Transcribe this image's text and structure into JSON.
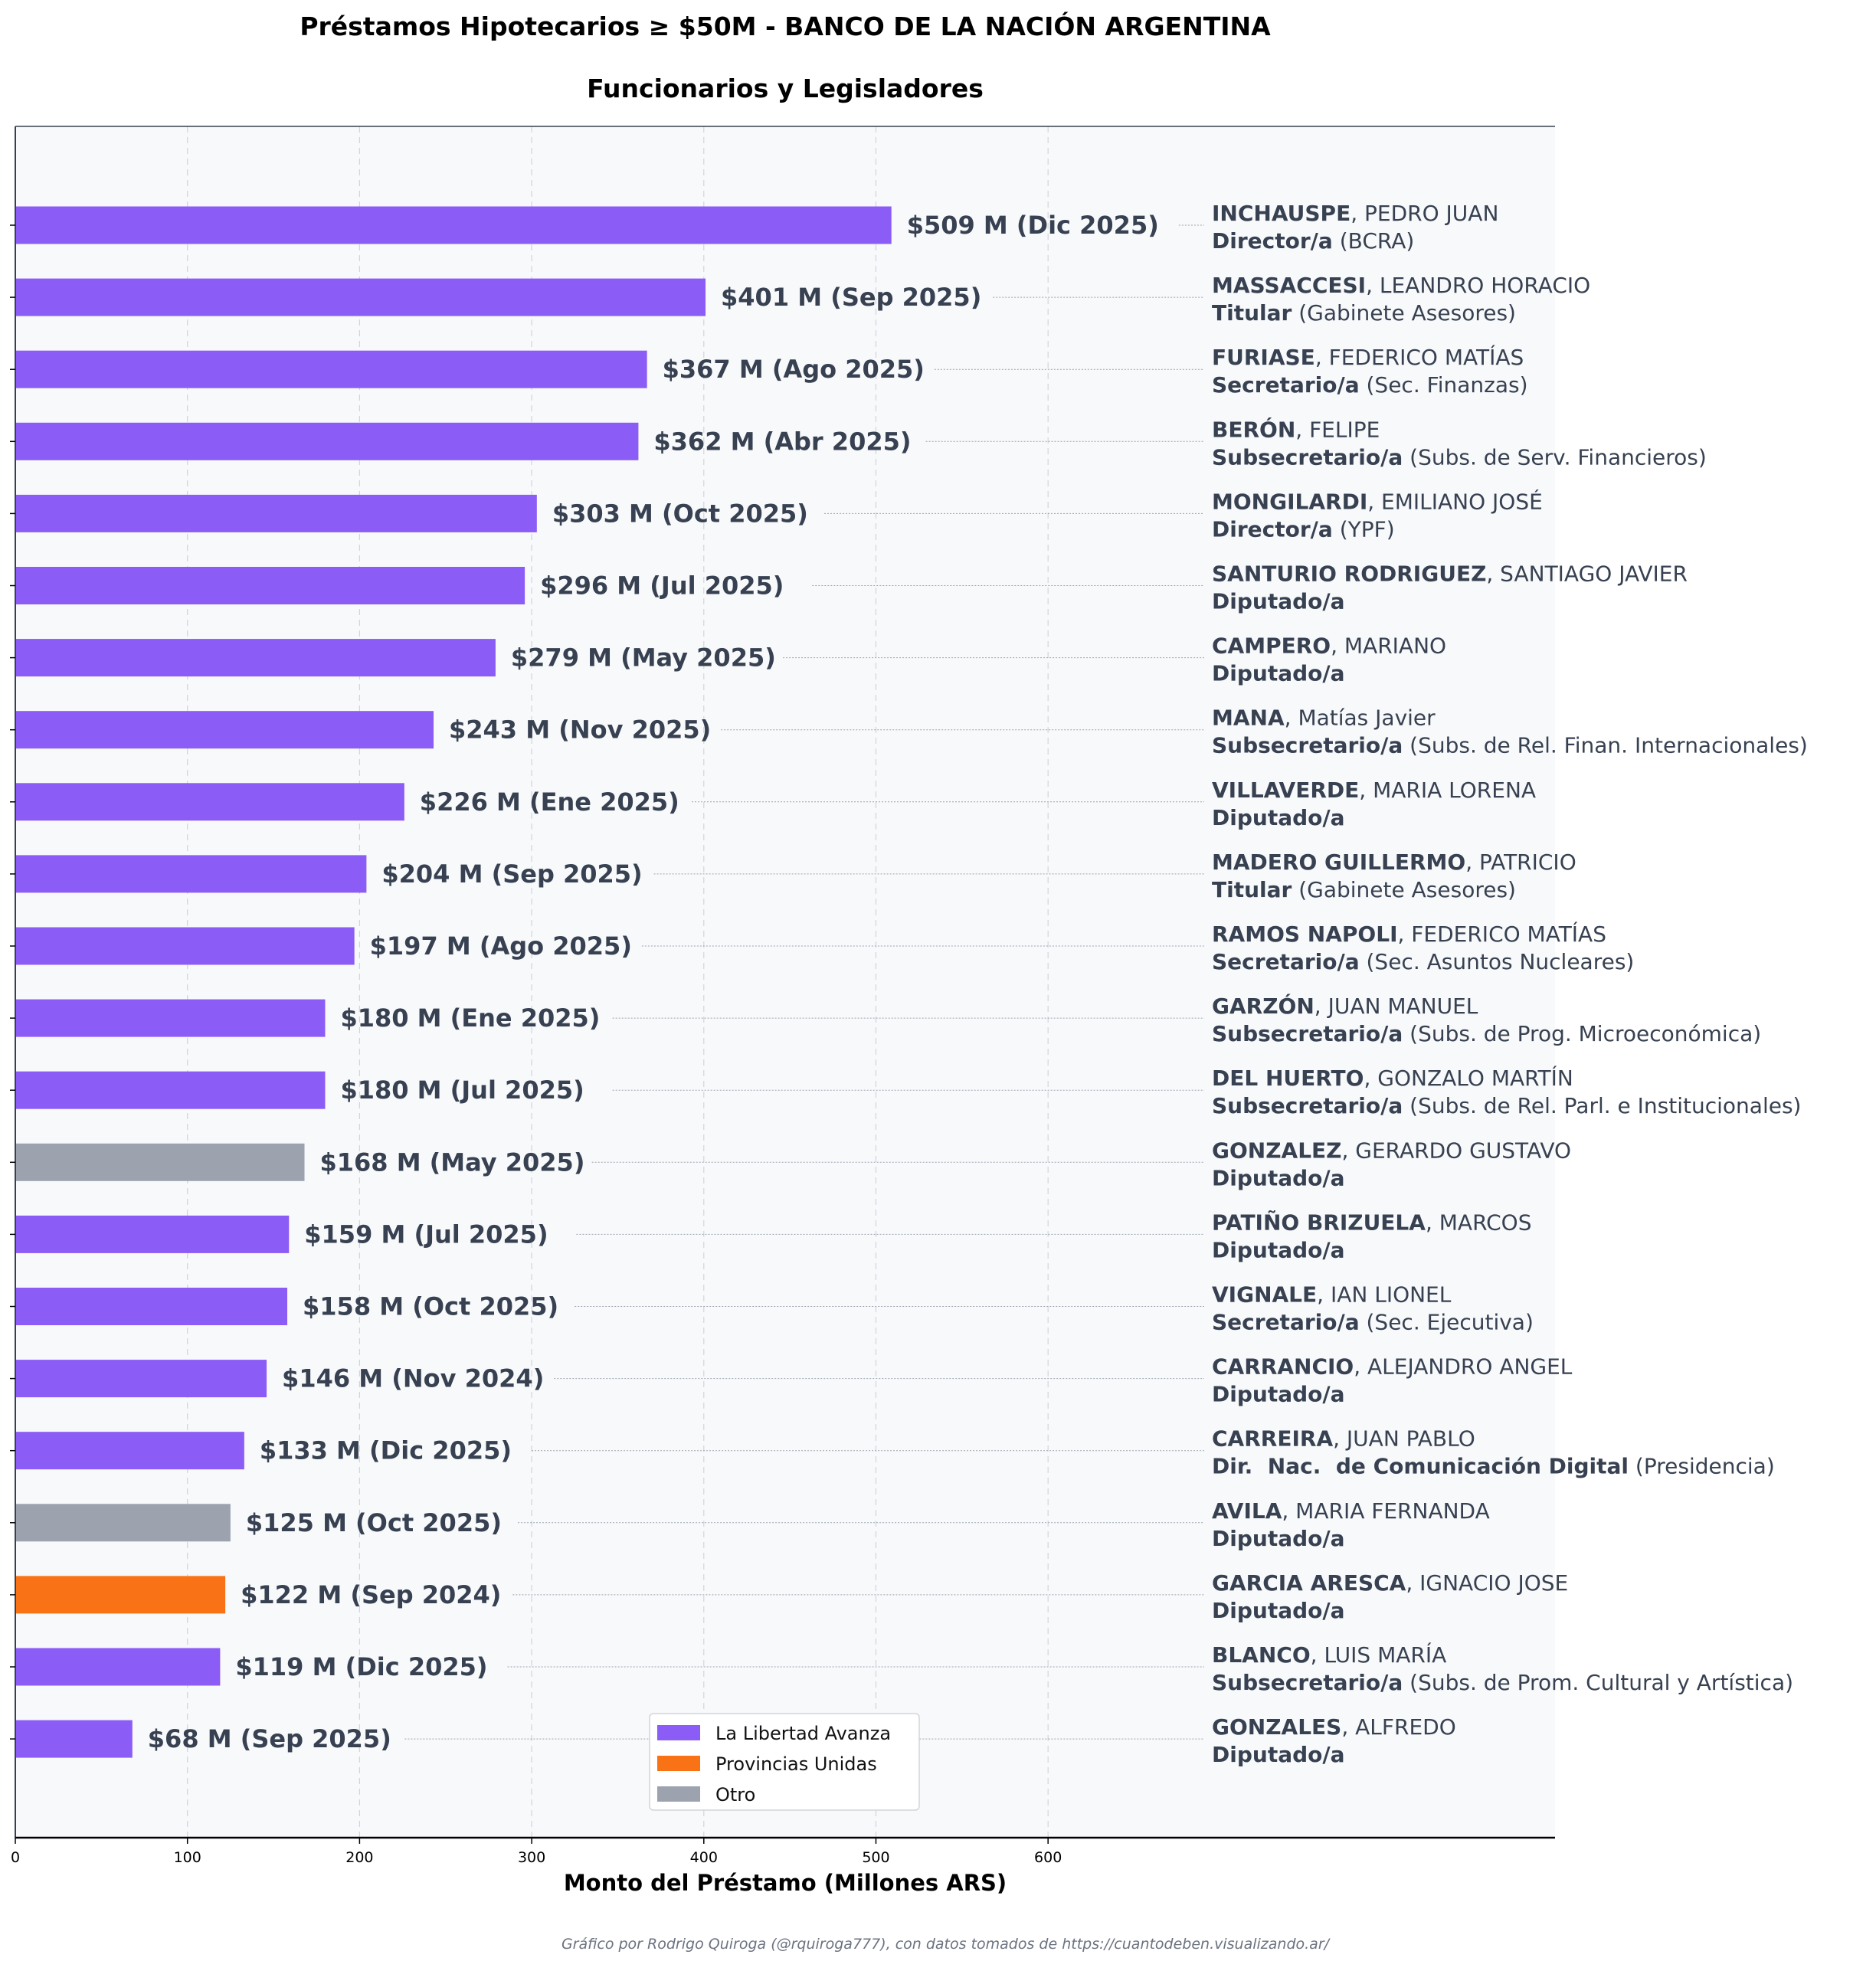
{
  "colors": {
    "La Libertad Avanza": "#8b5cf6",
    "Provincias Unidas": "#f97316",
    "Otro": "#9ca3af",
    "text": "#374151",
    "plot_bg": "#f8f9fb"
  },
  "chart_data": {
    "type": "bar",
    "orientation": "horizontal",
    "title": "Préstamos Hipotecarios ≥ $50M - BANCO DE LA NACIÓN ARGENTINA",
    "subtitle": "Funcionarios y Legisladores",
    "xlabel": "Monto del Préstamo (Millones ARS)",
    "ylabel": "",
    "xlim": [
      0,
      903
    ],
    "xticks": [
      0,
      100,
      200,
      300,
      400,
      500,
      600
    ],
    "grid": "x dashed",
    "legend_placement": "lower-center",
    "legend": [
      "La Libertad Avanza",
      "Provincias Unidas",
      "Otro"
    ],
    "credit": "Gráfico por Rodrigo Quiroga (@rquiroga777), con datos tomados de https://cuantodeben.visualizando.ar/",
    "items": [
      {
        "value": 509,
        "label": "$509 M (Dic 2025)",
        "surname": "INCHAUSPE",
        "given": ", PEDRO JUAN",
        "role": "Director/a",
        "dept": " (BCRA)",
        "party": "La Libertad Avanza"
      },
      {
        "value": 401,
        "label": "$401 M (Sep 2025)",
        "surname": "MASSACCESI",
        "given": ", LEANDRO HORACIO",
        "role": "Titular",
        "dept": " (Gabinete Asesores)",
        "party": "La Libertad Avanza"
      },
      {
        "value": 367,
        "label": "$367 M (Ago 2025)",
        "surname": "FURIASE",
        "given": ", FEDERICO MATÍAS",
        "role": "Secretario/a",
        "dept": " (Sec. Finanzas)",
        "party": "La Libertad Avanza"
      },
      {
        "value": 362,
        "label": "$362 M (Abr 2025)",
        "surname": "BERÓN",
        "given": ", FELIPE",
        "role": "Subsecretario/a",
        "dept": " (Subs. de Serv. Financieros)",
        "party": "La Libertad Avanza"
      },
      {
        "value": 303,
        "label": "$303 M (Oct 2025)",
        "surname": "MONGILARDI",
        "given": ", EMILIANO JOSÉ",
        "role": "Director/a",
        "dept": " (YPF)",
        "party": "La Libertad Avanza"
      },
      {
        "value": 296,
        "label": "$296 M (Jul 2025)",
        "surname": "SANTURIO RODRIGUEZ",
        "given": ", SANTIAGO JAVIER",
        "role": "Diputado/a",
        "dept": "",
        "party": "La Libertad Avanza"
      },
      {
        "value": 279,
        "label": "$279 M (May 2025)",
        "surname": "CAMPERO",
        "given": ", MARIANO",
        "role": "Diputado/a",
        "dept": "",
        "party": "La Libertad Avanza"
      },
      {
        "value": 243,
        "label": "$243 M (Nov 2025)",
        "surname": "MANA",
        "given": ", Matías Javier",
        "role": "Subsecretario/a",
        "dept": " (Subs. de Rel. Finan. Internacionales)",
        "party": "La Libertad Avanza"
      },
      {
        "value": 226,
        "label": "$226 M (Ene 2025)",
        "surname": "VILLAVERDE",
        "given": ", MARIA LORENA",
        "role": "Diputado/a",
        "dept": "",
        "party": "La Libertad Avanza"
      },
      {
        "value": 204,
        "label": "$204 M (Sep 2025)",
        "surname": "MADERO GUILLERMO",
        "given": ", PATRICIO",
        "role": "Titular",
        "dept": " (Gabinete Asesores)",
        "party": "La Libertad Avanza"
      },
      {
        "value": 197,
        "label": "$197 M (Ago 2025)",
        "surname": "RAMOS NAPOLI",
        "given": ", FEDERICO MATÍAS",
        "role": "Secretario/a",
        "dept": " (Sec. Asuntos Nucleares)",
        "party": "La Libertad Avanza"
      },
      {
        "value": 180,
        "label": "$180 M (Ene 2025)",
        "surname": "GARZÓN",
        "given": ", JUAN MANUEL",
        "role": "Subsecretario/a",
        "dept": " (Subs. de Prog. Microeconómica)",
        "party": "La Libertad Avanza"
      },
      {
        "value": 180,
        "label": "$180 M (Jul 2025)",
        "surname": "DEL HUERTO",
        "given": ", GONZALO MARTÍN",
        "role": "Subsecretario/a",
        "dept": " (Subs. de Rel. Parl. e Institucionales)",
        "party": "La Libertad Avanza"
      },
      {
        "value": 168,
        "label": "$168 M (May 2025)",
        "surname": "GONZALEZ",
        "given": ", GERARDO GUSTAVO",
        "role": "Diputado/a",
        "dept": "",
        "party": "Otro"
      },
      {
        "value": 159,
        "label": "$159 M (Jul 2025)",
        "surname": "PATIÑO BRIZUELA",
        "given": ", MARCOS",
        "role": "Diputado/a",
        "dept": "",
        "party": "La Libertad Avanza"
      },
      {
        "value": 158,
        "label": "$158 M (Oct 2025)",
        "surname": "VIGNALE",
        "given": ", IAN LIONEL",
        "role": "Secretario/a",
        "dept": " (Sec. Ejecutiva)",
        "party": "La Libertad Avanza"
      },
      {
        "value": 146,
        "label": "$146 M (Nov 2024)",
        "surname": "CARRANCIO",
        "given": ", ALEJANDRO ANGEL",
        "role": "Diputado/a",
        "dept": "",
        "party": "La Libertad Avanza"
      },
      {
        "value": 133,
        "label": "$133 M (Dic 2025)",
        "surname": "CARREIRA",
        "given": ", JUAN PABLO",
        "role": "Dir.  Nac.  de Comunicación Digital",
        "dept": " (Presidencia)",
        "party": "La Libertad Avanza"
      },
      {
        "value": 125,
        "label": "$125 M (Oct 2025)",
        "surname": "AVILA",
        "given": ", MARIA FERNANDA",
        "role": "Diputado/a",
        "dept": "",
        "party": "Otro"
      },
      {
        "value": 122,
        "label": "$122 M (Sep 2024)",
        "surname": "GARCIA ARESCA",
        "given": ", IGNACIO JOSE",
        "role": "Diputado/a",
        "dept": "",
        "party": "Provincias Unidas"
      },
      {
        "value": 119,
        "label": "$119 M (Dic 2025)",
        "surname": "BLANCO",
        "given": ", LUIS MARÍA",
        "role": "Subsecretario/a",
        "dept": " (Subs. de Prom. Cultural y Artística)",
        "party": "La Libertad Avanza"
      },
      {
        "value": 68,
        "label": "$68 M (Sep 2025)",
        "surname": "GONZALES",
        "given": ", ALFREDO",
        "role": "Diputado/a",
        "dept": "",
        "party": "La Libertad Avanza"
      }
    ]
  }
}
